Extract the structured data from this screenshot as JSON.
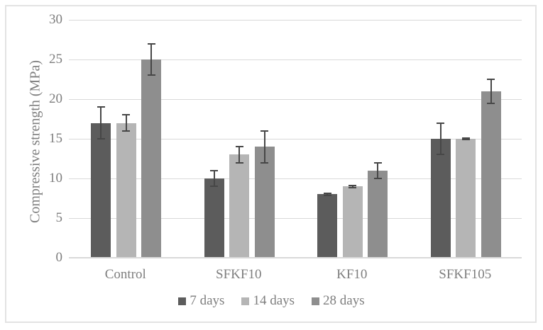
{
  "chart_data": {
    "type": "bar",
    "title": "",
    "xlabel": "",
    "ylabel": "Compressive strength (MPa)",
    "categories": [
      "Control",
      "SFKF10",
      "KF10",
      "SFKF105"
    ],
    "series": [
      {
        "name": "7 days",
        "color": "#5c5c5c",
        "values": [
          17,
          10,
          8,
          15
        ],
        "errors": [
          2,
          1,
          0.15,
          2
        ]
      },
      {
        "name": "14 days",
        "color": "#b5b5b5",
        "values": [
          17,
          13,
          9,
          15
        ],
        "errors": [
          1,
          1,
          0.15,
          0.1
        ]
      },
      {
        "name": "28 days",
        "color": "#8e8e8e",
        "values": [
          25,
          14,
          11,
          21
        ],
        "errors": [
          2,
          2,
          1,
          1.5
        ]
      }
    ],
    "ylim": [
      0,
      30
    ],
    "yticks": [
      0,
      5,
      10,
      15,
      20,
      25,
      30
    ],
    "grid": true,
    "error_bars": true,
    "legend_position": "bottom"
  },
  "colors": {
    "background": "#ffffff",
    "frame_border": "#e3e3e3",
    "gridline": "#d9d9d9",
    "axis_line": "#d9d9d9",
    "error_bar": "#474747",
    "text": "#7e7e7e"
  }
}
